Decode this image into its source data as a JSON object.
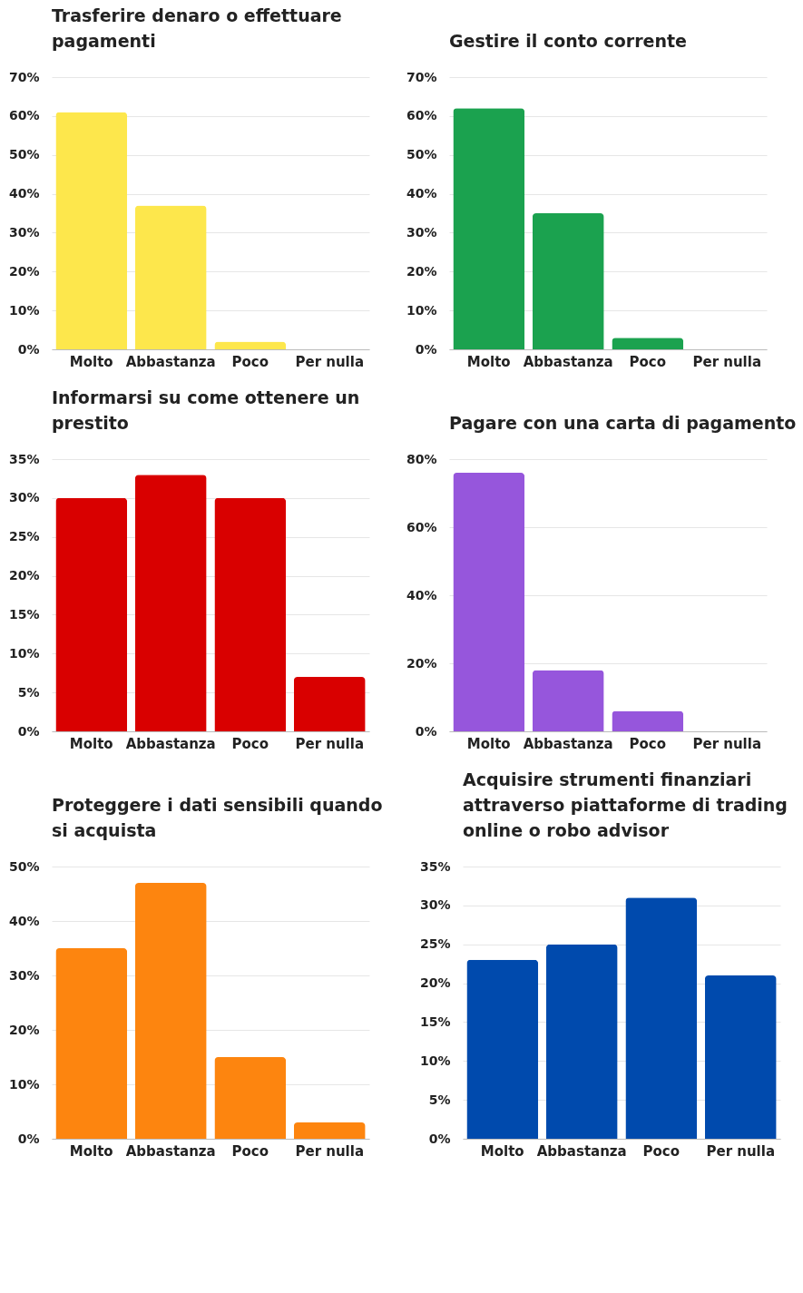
{
  "chart_data": [
    {
      "type": "bar",
      "title": "Trasferire denaro o effettuare pagamenti",
      "categories": [
        "Molto",
        "Abbastanza",
        "Poco",
        "Per nulla"
      ],
      "values": [
        61,
        37,
        2,
        0
      ],
      "color": "#fde74c",
      "ylim": [
        0,
        70
      ],
      "yticks": [
        {
          "value": 0,
          "label": "0%"
        },
        {
          "value": 10,
          "label": "10%"
        },
        {
          "value": 20,
          "label": "20%"
        },
        {
          "value": 30,
          "label": "30%"
        },
        {
          "value": 40,
          "label": "40%"
        },
        {
          "value": 50,
          "label": "50%"
        },
        {
          "value": 60,
          "label": "60%"
        },
        {
          "value": 70,
          "label": "70%"
        }
      ],
      "grid": "y"
    },
    {
      "type": "bar",
      "title": "Gestire il conto corrente",
      "categories": [
        "Molto",
        "Abbastanza",
        "Poco",
        "Per nulla"
      ],
      "values": [
        62,
        35,
        3,
        0
      ],
      "color": "#1ba24f",
      "ylim": [
        0,
        70
      ],
      "yticks": [
        {
          "value": 0,
          "label": "0%"
        },
        {
          "value": 10,
          "label": "10%"
        },
        {
          "value": 20,
          "label": "20%"
        },
        {
          "value": 30,
          "label": "30%"
        },
        {
          "value": 40,
          "label": "40%"
        },
        {
          "value": 50,
          "label": "50%"
        },
        {
          "value": 60,
          "label": "60%"
        },
        {
          "value": 70,
          "label": "70%"
        }
      ],
      "grid": "y"
    },
    {
      "type": "bar",
      "title": "Informarsi su come ottenere un prestito",
      "categories": [
        "Molto",
        "Abbastanza",
        "Poco",
        "Per nulla"
      ],
      "values": [
        30,
        33,
        30,
        7
      ],
      "color": "#d90000",
      "ylim": [
        0,
        35
      ],
      "yticks": [
        {
          "value": 0,
          "label": "0%"
        },
        {
          "value": 5,
          "label": "5%"
        },
        {
          "value": 10,
          "label": "10%"
        },
        {
          "value": 15,
          "label": "15%"
        },
        {
          "value": 20,
          "label": "20%"
        },
        {
          "value": 25,
          "label": "25%"
        },
        {
          "value": 30,
          "label": "30%"
        },
        {
          "value": 35,
          "label": "35%"
        }
      ],
      "grid": "y"
    },
    {
      "type": "bar",
      "title": "Pagare con una carta di pagamento",
      "categories": [
        "Molto",
        "Abbastanza",
        "Poco",
        "Per nulla"
      ],
      "values": [
        76,
        18,
        6,
        0
      ],
      "color": "#9656dc",
      "ylim": [
        0,
        80
      ],
      "yticks": [
        {
          "value": 0,
          "label": "0%"
        },
        {
          "value": 20,
          "label": "20%"
        },
        {
          "value": 40,
          "label": "40%"
        },
        {
          "value": 60,
          "label": "60%"
        },
        {
          "value": 80,
          "label": "80%"
        }
      ],
      "grid": "y"
    },
    {
      "type": "bar",
      "title": "Proteggere i dati sensibili quando si acquista",
      "categories": [
        "Molto",
        "Abbastanza",
        "Poco",
        "Per nulla"
      ],
      "values": [
        35,
        47,
        15,
        3
      ],
      "color": "#fd850f",
      "ylim": [
        0,
        50
      ],
      "yticks": [
        {
          "value": 0,
          "label": "0%"
        },
        {
          "value": 10,
          "label": "10%"
        },
        {
          "value": 20,
          "label": "20%"
        },
        {
          "value": 30,
          "label": "30%"
        },
        {
          "value": 40,
          "label": "40%"
        },
        {
          "value": 50,
          "label": "50%"
        }
      ],
      "grid": "y"
    },
    {
      "type": "bar",
      "title": "Acquisire strumenti finanziari attraverso piattaforme di trading online o robo advisor",
      "categories": [
        "Molto",
        "Abbastanza",
        "Poco",
        "Per nulla"
      ],
      "values": [
        23,
        25,
        31,
        21
      ],
      "color": "#004aad",
      "ylim": [
        0,
        35
      ],
      "yticks": [
        {
          "value": 0,
          "label": "0%"
        },
        {
          "value": 5,
          "label": "5%"
        },
        {
          "value": 10,
          "label": "10%"
        },
        {
          "value": 15,
          "label": "15%"
        },
        {
          "value": 20,
          "label": "20%"
        },
        {
          "value": 25,
          "label": "25%"
        },
        {
          "value": 30,
          "label": "30%"
        },
        {
          "value": 35,
          "label": "35%"
        }
      ],
      "grid": "y"
    }
  ]
}
